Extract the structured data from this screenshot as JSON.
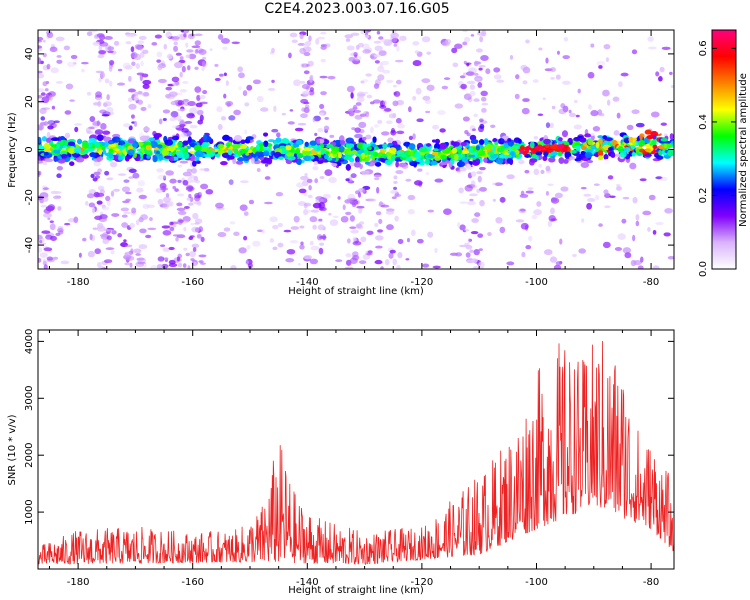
{
  "title": "C2E4.2023.003.07.16.G05",
  "chart_data": [
    {
      "type": "heatmap",
      "title": "C2E4.2023.003.07.16.G05",
      "xlabel": "Height of straight line (km)",
      "ylabel": "Frequency (Hz)",
      "xlim": [
        -187,
        -76
      ],
      "ylim": [
        -50,
        50
      ],
      "xticks": [
        -180,
        -160,
        -140,
        -120,
        -100,
        -80
      ],
      "yticks": [
        40,
        20,
        0,
        -20,
        -40
      ],
      "colorbar": {
        "label": "Normalized spectral amplitude",
        "range": [
          0,
          0.65
        ],
        "ticks": [
          "0.0",
          "0.2",
          "0.4",
          "0.6"
        ],
        "colors": [
          "#ffffff",
          "#d9b3ff",
          "#8000ff",
          "#0000ff",
          "#00ffff",
          "#00ff00",
          "#ffff00",
          "#ff8000",
          "#ff0000",
          "#ff0080"
        ]
      },
      "band": {
        "center_frequency_hz": [
          {
            "x": -187,
            "y": 0
          },
          {
            "x": -150,
            "y": 0
          },
          {
            "x": -120,
            "y": -2
          },
          {
            "x": -100,
            "y": 0
          },
          {
            "x": -85,
            "y": 2
          },
          {
            "x": -77,
            "y": 1
          }
        ],
        "half_width_hz": 4
      },
      "grid": false
    },
    {
      "type": "line",
      "xlabel": "Height of straight line (km)",
      "ylabel": "SNR (10 * v/v)",
      "xlim": [
        -187,
        -76
      ],
      "ylim": [
        0,
        4200
      ],
      "xticks": [
        -180,
        -160,
        -140,
        -120,
        -100,
        -80
      ],
      "yticks": [
        1000,
        2000,
        3000,
        4000
      ],
      "color": "#ee2222",
      "grid": false,
      "envelope": [
        {
          "x": -187,
          "y": 400
        },
        {
          "x": -180,
          "y": 700
        },
        {
          "x": -170,
          "y": 750
        },
        {
          "x": -160,
          "y": 650
        },
        {
          "x": -152,
          "y": 700
        },
        {
          "x": -148,
          "y": 1100
        },
        {
          "x": -145,
          "y": 2350
        },
        {
          "x": -142,
          "y": 1300
        },
        {
          "x": -138,
          "y": 900
        },
        {
          "x": -130,
          "y": 650
        },
        {
          "x": -120,
          "y": 750
        },
        {
          "x": -114,
          "y": 1300
        },
        {
          "x": -108,
          "y": 1900
        },
        {
          "x": -104,
          "y": 2500
        },
        {
          "x": -100,
          "y": 3500
        },
        {
          "x": -96,
          "y": 4050
        },
        {
          "x": -92,
          "y": 3700
        },
        {
          "x": -89,
          "y": 4200
        },
        {
          "x": -85,
          "y": 3700
        },
        {
          "x": -82,
          "y": 2400
        },
        {
          "x": -79,
          "y": 2200
        },
        {
          "x": -77,
          "y": 1700
        },
        {
          "x": -76,
          "y": 600
        }
      ],
      "baseline": [
        {
          "x": -187,
          "y": 80
        },
        {
          "x": -150,
          "y": 120
        },
        {
          "x": -130,
          "y": 80
        },
        {
          "x": -110,
          "y": 250
        },
        {
          "x": -100,
          "y": 700
        },
        {
          "x": -90,
          "y": 1100
        },
        {
          "x": -80,
          "y": 700
        },
        {
          "x": -76,
          "y": 300
        }
      ]
    }
  ]
}
